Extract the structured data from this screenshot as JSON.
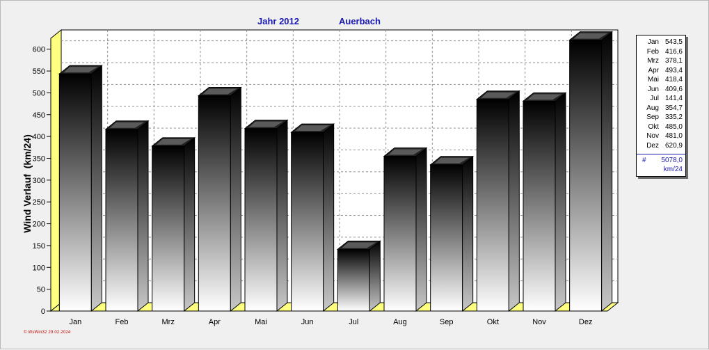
{
  "chart_data": {
    "type": "bar",
    "title_year": "Jahr  2012",
    "title_place": "Auerbach",
    "ylabel": "Wind Verlauf  (km/24)",
    "xlabel": "",
    "ylim": [
      0,
      625
    ],
    "yticks": [
      "0",
      "50",
      "100",
      "150",
      "200",
      "250",
      "300",
      "350",
      "400",
      "450",
      "500",
      "550",
      "600"
    ],
    "categories": [
      "Jan",
      "Feb",
      "Mrz",
      "Apr",
      "Mai",
      "Jun",
      "Jul",
      "Aug",
      "Sep",
      "Okt",
      "Nov",
      "Dez"
    ],
    "values": [
      543.5,
      416.6,
      378.1,
      493.4,
      418.4,
      409.6,
      141.4,
      354.7,
      335.2,
      485.0,
      481.0,
      620.9
    ],
    "grid": true,
    "legend_placement": "right"
  },
  "legend": {
    "rows": [
      {
        "month": "Jan",
        "value": "543,5"
      },
      {
        "month": "Feb",
        "value": "416,6"
      },
      {
        "month": "Mrz",
        "value": "378,1"
      },
      {
        "month": "Apr",
        "value": "493,4"
      },
      {
        "month": "Mai",
        "value": "418,4"
      },
      {
        "month": "Jun",
        "value": "409,6"
      },
      {
        "month": "Jul",
        "value": "141,4"
      },
      {
        "month": "Aug",
        "value": "354,7"
      },
      {
        "month": "Sep",
        "value": "335,2"
      },
      {
        "month": "Okt",
        "value": "485,0"
      },
      {
        "month": "Nov",
        "value": "481,0"
      },
      {
        "month": "Dez",
        "value": "620,9"
      }
    ],
    "total_symbol": "#",
    "total_value": "5078,0",
    "total_unit": "km/24"
  },
  "footer": "© WsWin32  29.02.2024",
  "colors": {
    "title": "#1a1ab4",
    "floor": "#ffff80",
    "bar_top": "#000000",
    "bar_bottom": "#ffffff",
    "footer": "#c00000"
  }
}
